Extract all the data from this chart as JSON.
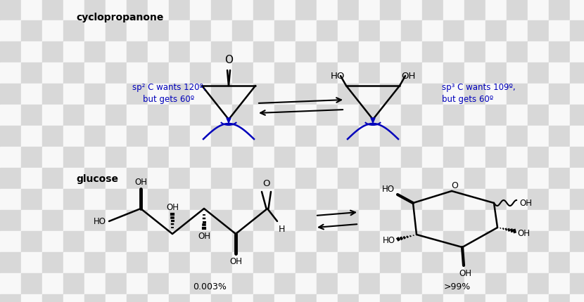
{
  "bg_checker_colors": [
    "#d8d8d8",
    "#f8f8f8"
  ],
  "checker_size": 30,
  "title_cyclopropanone": "cyclopropanone",
  "title_glucose": "glucose",
  "label_sp2": "sp² C wants 120º,\nbut gets 60º",
  "label_sp3": "sp³ C wants 109º,\nbut gets 60º",
  "label_pct_left": "0.003%",
  "label_pct_right": ">99%",
  "blue_color": "#0000bb",
  "black_color": "#000000",
  "fig_width": 8.3,
  "fig_height": 4.31,
  "dpi": 100
}
